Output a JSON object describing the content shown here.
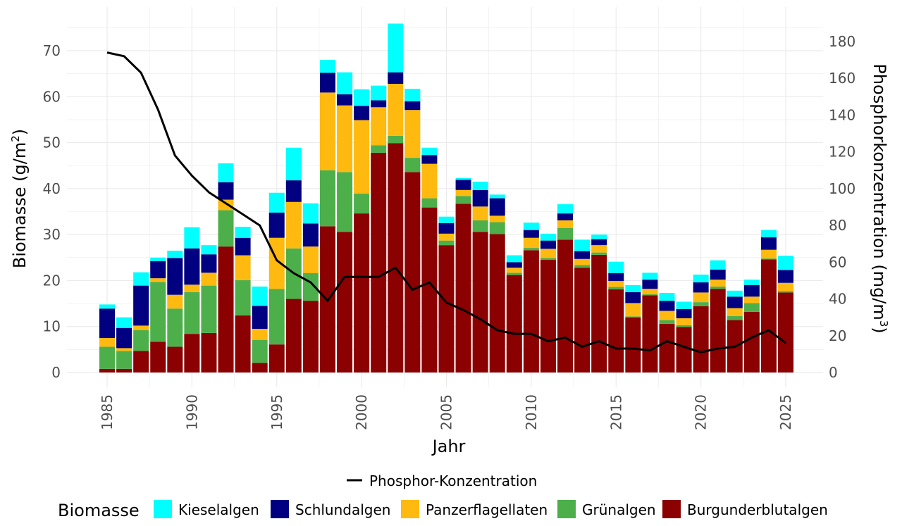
{
  "chart_data": {
    "type": "bar",
    "stacked": true,
    "xlabel": "Jahr",
    "ylabel_prefix": "Biomasse (g/m",
    "ylabel_sup": "2",
    "ylabel_suffix": ")",
    "y2label_prefix": "Phosphorkonzentration (mg/m",
    "y2label_sup": "3",
    "y2label_suffix": ")",
    "ylim": [
      0,
      76
    ],
    "y2lim": [
      0,
      190
    ],
    "yticks": [
      0,
      10,
      20,
      30,
      40,
      50,
      60,
      70
    ],
    "y2ticks": [
      0,
      20,
      40,
      60,
      80,
      100,
      120,
      140,
      160,
      180
    ],
    "xticks": [
      1985,
      1990,
      1995,
      2000,
      2005,
      2010,
      2015,
      2020,
      2025
    ],
    "grid": true,
    "legend_position": "bottom",
    "legend_title": "Biomasse",
    "years": [
      1985,
      1986,
      1987,
      1988,
      1989,
      1990,
      1991,
      1992,
      1993,
      1994,
      1995,
      1996,
      1997,
      1998,
      1999,
      2000,
      2001,
      2002,
      2003,
      2004,
      2005,
      2006,
      2007,
      2008,
      2009,
      2010,
      2011,
      2012,
      2013,
      2014,
      2015,
      2016,
      2017,
      2018,
      2019,
      2020,
      2021,
      2022,
      2023,
      2024,
      2025
    ],
    "series": [
      {
        "name": "Burgunderblutalgen",
        "color": "#8B0000",
        "values": [
          0.8,
          0.8,
          4.7,
          6.7,
          5.6,
          8.4,
          8.6,
          27.4,
          12.4,
          2.1,
          6.1,
          16.0,
          15.6,
          31.8,
          30.6,
          34.6,
          47.8,
          49.9,
          43.6,
          35.9,
          27.7,
          36.7,
          30.6,
          30.1,
          21.2,
          26.6,
          24.5,
          28.9,
          22.8,
          25.6,
          18.1,
          12.0,
          16.8,
          10.6,
          9.9,
          14.4,
          18.2,
          11.4,
          13.2,
          24.6,
          17.4
        ]
      },
      {
        "name": "Grünalgen",
        "color": "#4DAF4A",
        "values": [
          4.8,
          3.9,
          4.5,
          13.0,
          8.3,
          9.1,
          10.3,
          7.9,
          7.7,
          5.0,
          12.1,
          11.0,
          6.0,
          12.2,
          13.0,
          4.3,
          1.6,
          1.6,
          3.1,
          2.0,
          1.0,
          1.7,
          2.5,
          2.6,
          0.5,
          0.5,
          0.4,
          2.5,
          0.6,
          0.5,
          0.5,
          0.2,
          0.2,
          0.8,
          0.4,
          0.9,
          0.5,
          0.9,
          1.9,
          0.2,
          0.3
        ]
      },
      {
        "name": "Panzerflagellaten",
        "color": "#FFB90F",
        "values": [
          1.9,
          0.6,
          1.0,
          0.8,
          3.0,
          1.6,
          2.8,
          2.3,
          5.4,
          2.4,
          11.1,
          10.1,
          5.8,
          16.9,
          14.5,
          16.0,
          8.3,
          11.3,
          10.4,
          7.5,
          1.5,
          1.3,
          3.0,
          1.4,
          1.1,
          2.2,
          2.0,
          1.7,
          1.3,
          1.6,
          1.3,
          2.9,
          1.2,
          2.0,
          1.5,
          2.1,
          1.5,
          1.7,
          1.4,
          1.9,
          1.8
        ]
      },
      {
        "name": "Schlundalgen",
        "color": "#000080",
        "values": [
          6.4,
          4.4,
          8.7,
          3.7,
          8.0,
          7.9,
          4.0,
          3.8,
          3.8,
          5.0,
          5.5,
          4.7,
          5.0,
          4.3,
          2.4,
          3.1,
          1.5,
          2.5,
          1.9,
          1.9,
          2.3,
          2.2,
          3.6,
          3.8,
          1.2,
          1.7,
          1.8,
          1.5,
          1.7,
          1.3,
          1.7,
          2.4,
          2.0,
          2.2,
          2.0,
          2.2,
          2.2,
          2.5,
          2.5,
          2.7,
          2.8
        ]
      },
      {
        "name": "Kieselalgen",
        "color": "#00FFFF",
        "values": [
          0.9,
          2.3,
          2.9,
          0.8,
          1.6,
          4.6,
          2.0,
          4.1,
          2.4,
          4.2,
          4.3,
          7.1,
          4.4,
          2.8,
          4.8,
          3.6,
          3.2,
          10.6,
          2.7,
          1.6,
          1.4,
          0.4,
          1.8,
          0.8,
          1.5,
          1.6,
          1.5,
          2.0,
          2.5,
          1.0,
          2.5,
          1.5,
          1.5,
          1.7,
          1.6,
          1.7,
          2.0,
          1.3,
          1.2,
          1.6,
          3.1
        ]
      }
    ],
    "line": {
      "name": "Phosphor-Konzentration",
      "color": "#000000",
      "values": [
        174,
        172,
        163,
        143,
        118,
        107,
        98,
        92,
        86,
        80,
        61,
        54,
        49,
        39,
        52,
        52,
        52,
        57,
        45,
        49,
        38,
        34,
        29,
        23,
        21,
        21,
        17,
        19,
        14,
        17,
        13,
        13,
        12,
        17,
        14,
        11,
        13,
        14,
        19,
        23,
        16
      ]
    }
  }
}
